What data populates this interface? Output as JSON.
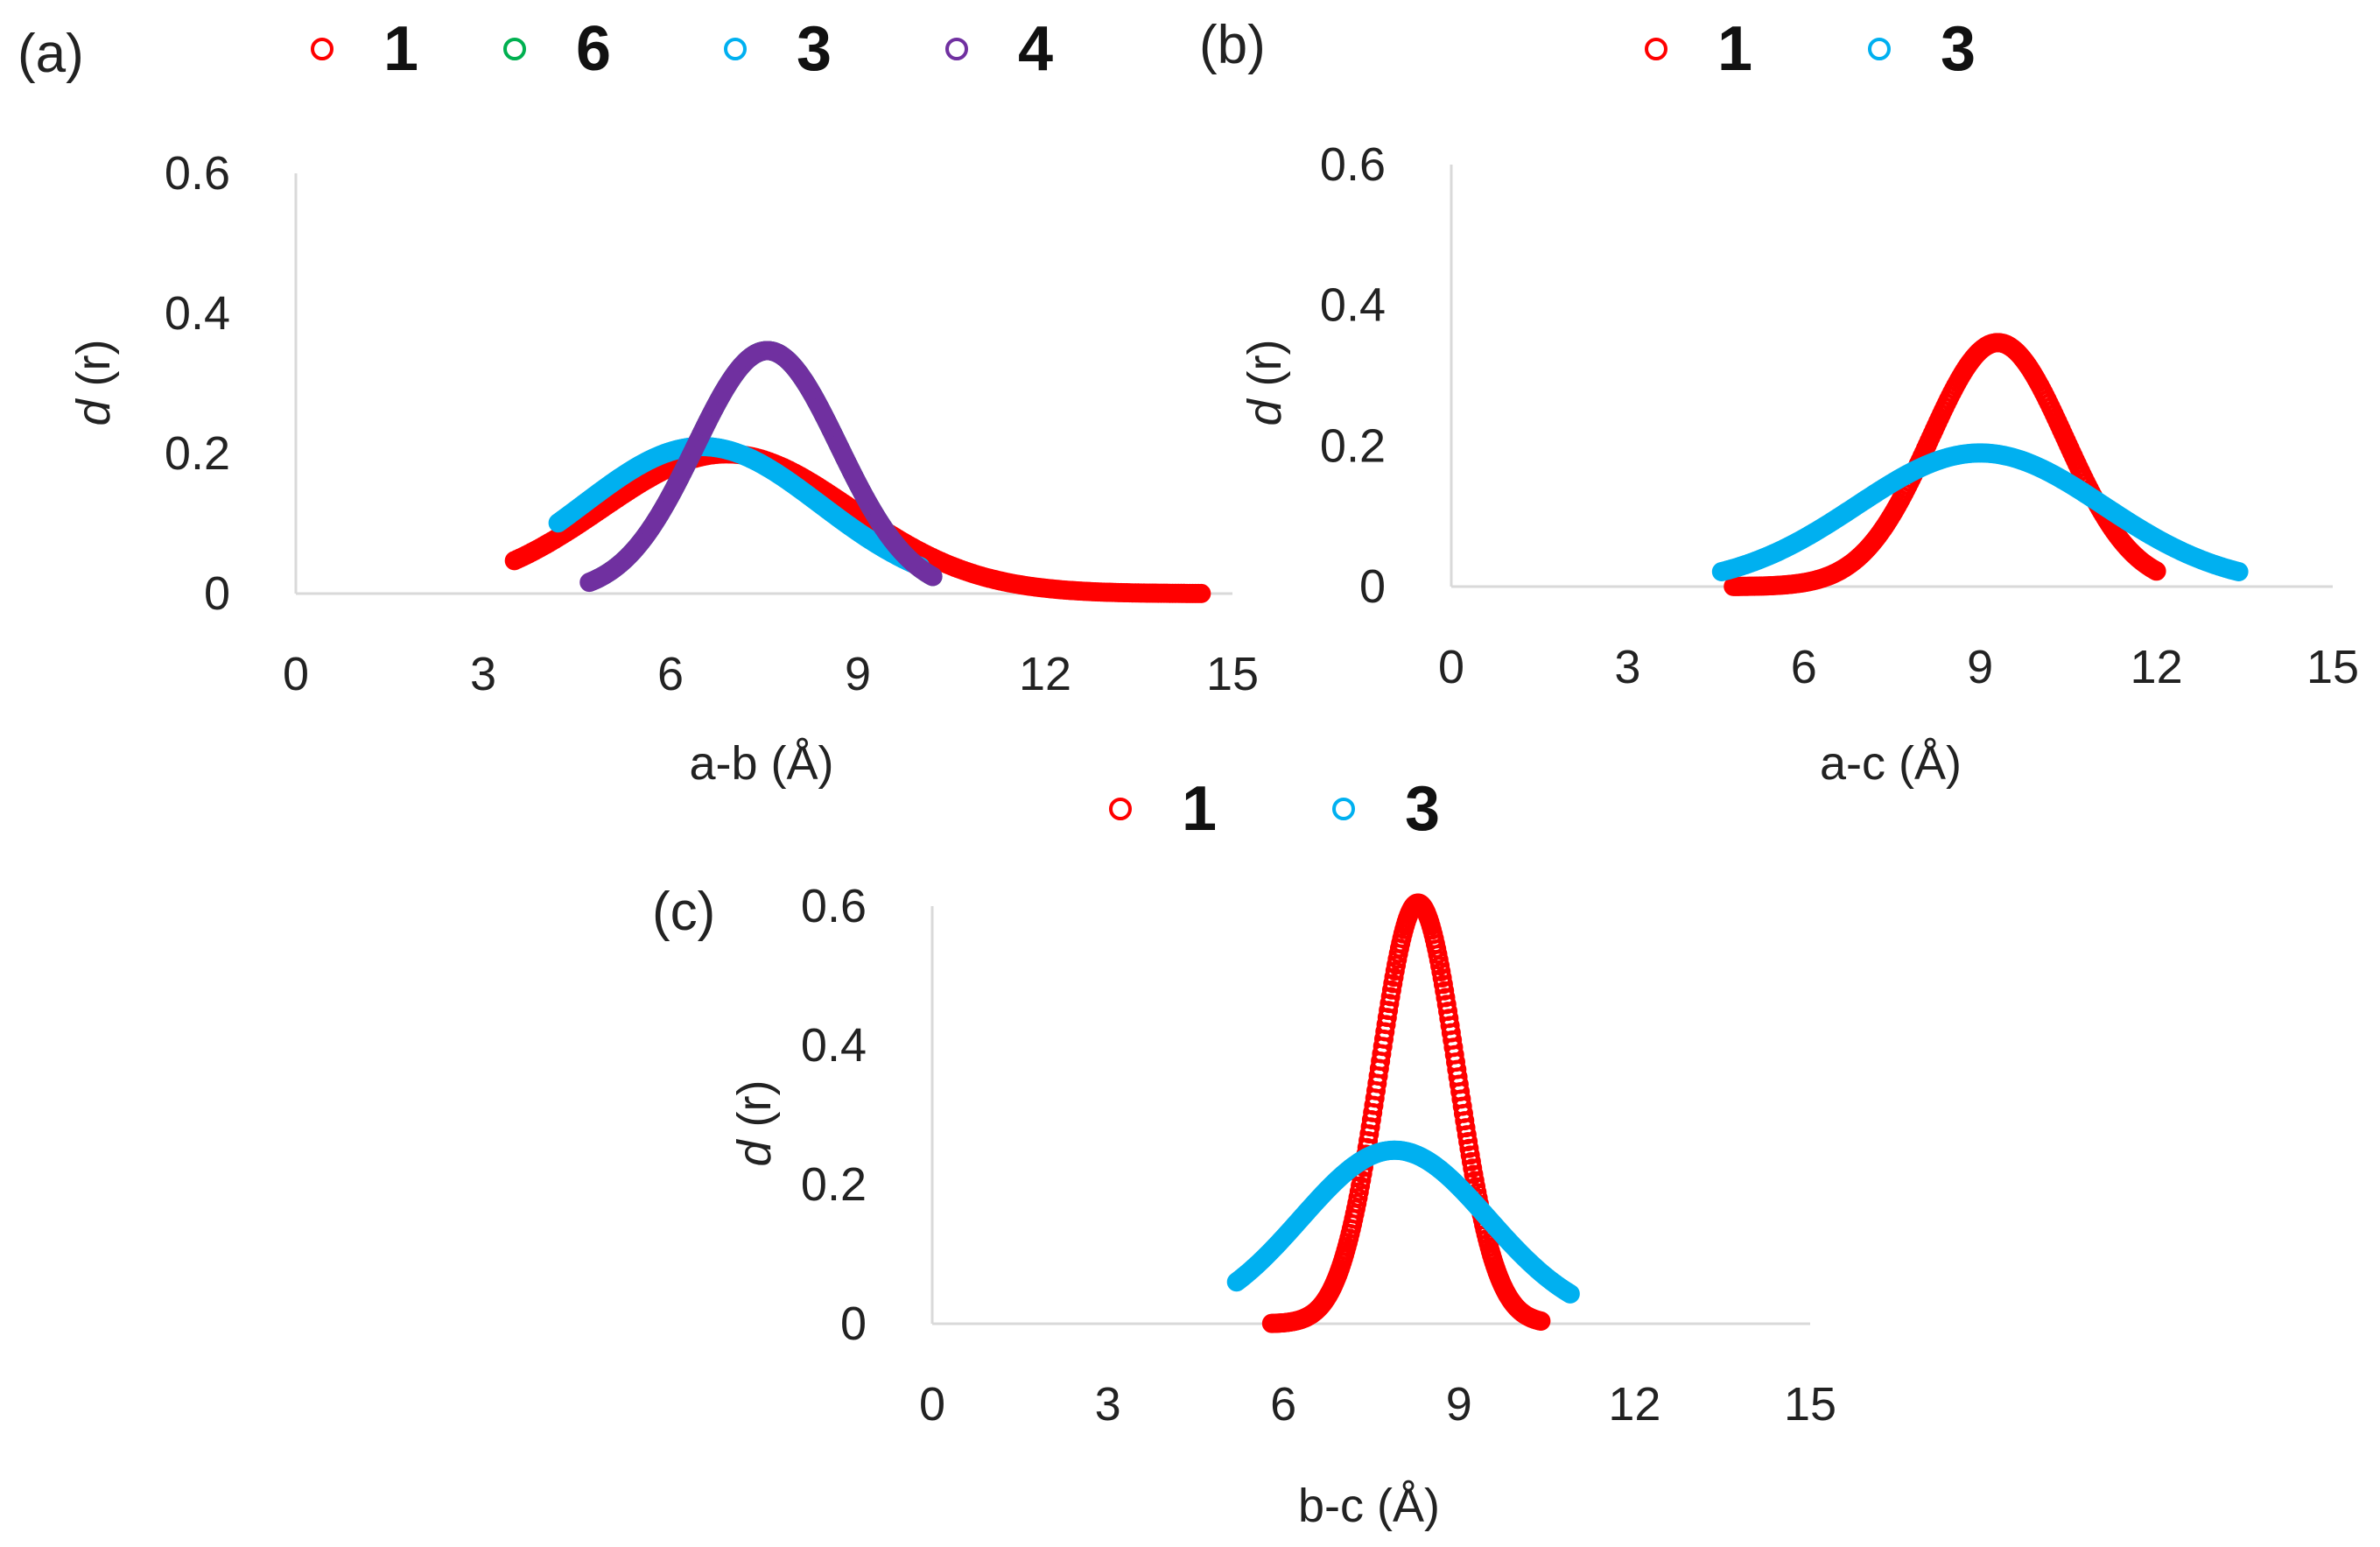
{
  "chart_data": [
    {
      "panel": "(a)",
      "type": "scatter",
      "xlabel": "a-b (Å)",
      "ylabel_italic": "d",
      "ylabel_rest": " (r)",
      "xlim": [
        0,
        15
      ],
      "ylim": [
        0,
        0.6
      ],
      "xticks": [
        0,
        3,
        6,
        9,
        12,
        15
      ],
      "yticks": [
        0,
        0.2,
        0.4,
        0.6
      ],
      "ytick_labels": [
        "0",
        "0.2",
        "0.4",
        "0.6"
      ],
      "grid": false,
      "legend_position": "top",
      "series": [
        {
          "name": "1",
          "color": "#ff0000",
          "mu": 6.9,
          "sigma": 2.0,
          "xmin": 3.5,
          "xmax": 14.5
        },
        {
          "name": "6",
          "color": "#00b050",
          "mu": 7.55,
          "sigma": 1.15,
          "xmin": 4.8,
          "xmax": 10.2
        },
        {
          "name": "3",
          "color": "#00b0f0",
          "mu": 6.5,
          "sigma": 1.9,
          "xmin": 4.2,
          "xmax": 10.0
        },
        {
          "name": "4",
          "color": "#7030a0",
          "mu": 7.55,
          "sigma": 1.15,
          "xmin": 4.7,
          "xmax": 10.2
        }
      ]
    },
    {
      "panel": "(b)",
      "type": "scatter",
      "xlabel": "a-c (Å)",
      "ylabel_italic": "d",
      "ylabel_rest": " (r)",
      "xlim": [
        0,
        15
      ],
      "ylim": [
        0,
        0.6
      ],
      "xticks": [
        0,
        3,
        6,
        9,
        12,
        15
      ],
      "yticks": [
        0,
        0.2,
        0.4,
        0.6
      ],
      "ytick_labels": [
        "0",
        "0.2",
        "0.4",
        "0.6"
      ],
      "grid": false,
      "legend_position": "top",
      "series": [
        {
          "name": "1",
          "color": "#ff0000",
          "mu": 9.3,
          "sigma": 1.15,
          "xmin": 4.8,
          "xmax": 12.0
        },
        {
          "name": "3",
          "color": "#00b0f0",
          "mu": 9.0,
          "sigma": 2.1,
          "xmin": 4.6,
          "xmax": 13.4
        }
      ]
    },
    {
      "panel": "(c)",
      "type": "scatter",
      "xlabel": "b-c (Å)",
      "ylabel_italic": "d",
      "ylabel_rest": " (r)",
      "xlim": [
        0,
        15
      ],
      "ylim": [
        0,
        0.6
      ],
      "xticks": [
        0,
        3,
        6,
        9,
        12,
        15
      ],
      "yticks": [
        0,
        0.2,
        0.4,
        0.6
      ],
      "ytick_labels": [
        "0",
        "0.2",
        "0.4",
        "0.6"
      ],
      "grid": false,
      "legend_position": "top",
      "series": [
        {
          "name": "1",
          "color": "#ff0000",
          "mu": 8.3,
          "sigma": 0.66,
          "xmin": 5.8,
          "xmax": 10.4
        },
        {
          "name": "3",
          "color": "#00b0f0",
          "mu": 7.9,
          "sigma": 1.6,
          "xmin": 5.2,
          "xmax": 10.9
        }
      ]
    }
  ]
}
